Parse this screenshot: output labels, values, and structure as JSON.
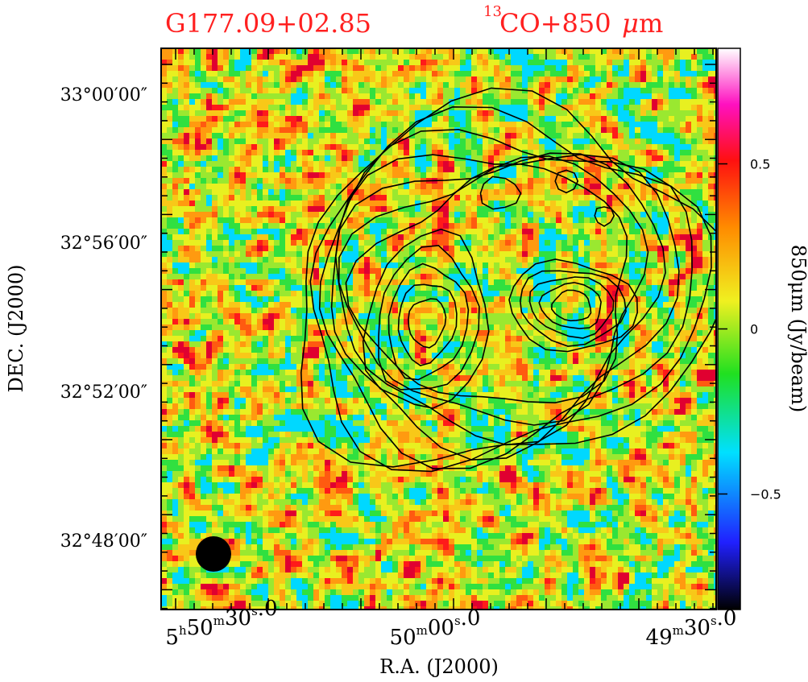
{
  "header": {
    "source_name": "G177.09+02.85",
    "tracer_sup": "13",
    "tracer_main": "CO+850",
    "tracer_mu": "μ",
    "tracer_unit": "m"
  },
  "colors": {
    "header_text": "#ff2020",
    "contour": "#000000",
    "frame": "#000000",
    "background": "#ffffff"
  },
  "chart_data": {
    "type": "heatmap",
    "description_kind": "850um continuum image with 13CO contours",
    "xlabel": "R.A. (J2000)",
    "ylabel": "DEC. (J2000)",
    "colorbar_label": "850μm (Jy/beam)",
    "colorbar_range": [
      -0.85,
      0.85
    ],
    "colorbar_ticks": [
      {
        "value": 0.5,
        "label": "0.5"
      },
      {
        "value": 0,
        "label": "0"
      },
      {
        "value": -0.5,
        "label": "−0.5"
      }
    ],
    "xticks": [
      {
        "h": "5",
        "m": "50",
        "s": "30",
        "frac": "0",
        "label_kind": "full"
      },
      {
        "h": "",
        "m": "50",
        "s": "00",
        "frac": "0",
        "label_kind": "min"
      },
      {
        "h": "",
        "m": "49",
        "s": "30",
        "frac": "0",
        "label_kind": "min"
      }
    ],
    "yticks": [
      {
        "label": "33°00′00″",
        "dec_deg": 33.0
      },
      {
        "label": "32°56′00″",
        "dec_deg": 32.9333
      },
      {
        "label": "32°52′00″",
        "dec_deg": 32.8667
      },
      {
        "label": "32°48′00″",
        "dec_deg": 32.8
      }
    ],
    "beam": "filled-circle",
    "contour_levels_count": 7,
    "peaks": [
      {
        "name": "west-peak"
      },
      {
        "name": "east-peak"
      }
    ]
  }
}
